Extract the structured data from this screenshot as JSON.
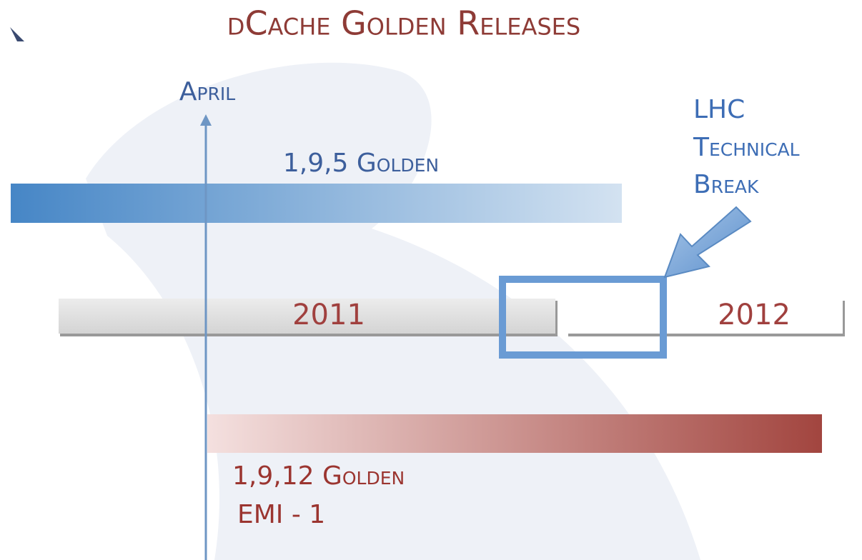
{
  "title": "dCache Golden Releases",
  "marker": "April",
  "releases": [
    {
      "label": "1,9,5 Golden"
    },
    {
      "label": "1,9,12 Golden",
      "note": "EMI - 1"
    }
  ],
  "years": [
    "2011",
    "2012"
  ],
  "callout": {
    "lines": [
      "LHC",
      "Technical",
      "Break"
    ]
  }
}
